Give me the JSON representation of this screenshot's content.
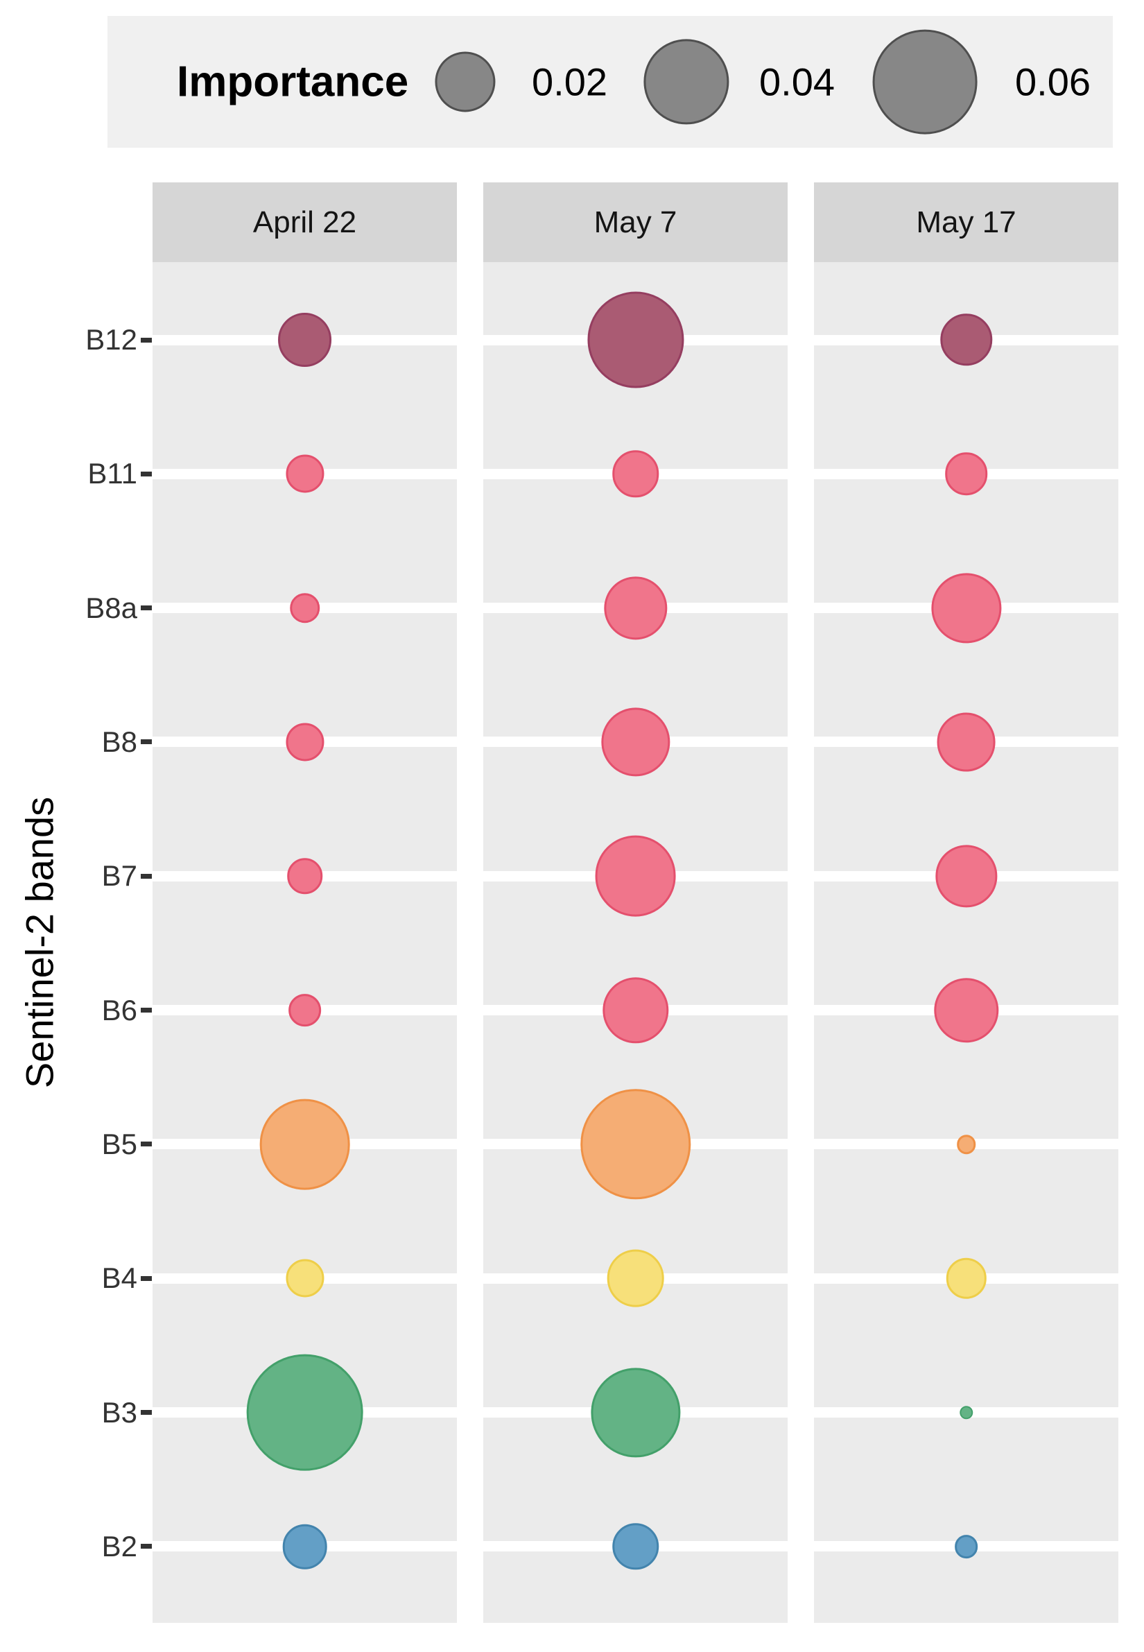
{
  "figure": {
    "background": "#ffffff",
    "panel_background": "#ebebeb",
    "strip_background": "#d6d6d6",
    "legend_background": "#f0f0f0",
    "gridline_color": "#ffffff"
  },
  "legend": {
    "title": "Importance",
    "circle_fill": "#878787",
    "circle_stroke": "#4f4f4f",
    "items": [
      {
        "label": "0.02",
        "value": 0.02
      },
      {
        "label": "0.04",
        "value": 0.04
      },
      {
        "label": "0.06",
        "value": 0.06
      }
    ]
  },
  "y_axis": {
    "title": "Sentinel-2 bands"
  },
  "chart_data": {
    "type": "bubble",
    "facets": [
      "April 22",
      "May 7",
      "May 17"
    ],
    "ylabel": "Sentinel-2 bands",
    "size_legend_title": "Importance",
    "size_legend_values": [
      0.02,
      0.04,
      0.06
    ],
    "legend_position": "top",
    "grid": "white horizontal major gridlines on gray panels",
    "bands": [
      {
        "label": "B12",
        "fill": "#aa5b73",
        "stroke": "#953e60",
        "importance": [
          0.016,
          0.051,
          0.015
        ]
      },
      {
        "label": "B11",
        "fill": "#f0758b",
        "stroke": "#e4506d",
        "importance": [
          0.008,
          0.012,
          0.01
        ]
      },
      {
        "label": "B8a",
        "fill": "#f0758b",
        "stroke": "#e4506d",
        "importance": [
          0.005,
          0.022,
          0.027
        ]
      },
      {
        "label": "B8",
        "fill": "#f0758b",
        "stroke": "#e4506d",
        "importance": [
          0.008,
          0.026,
          0.019
        ]
      },
      {
        "label": "B7",
        "fill": "#f0758b",
        "stroke": "#e4506d",
        "importance": [
          0.007,
          0.036,
          0.021
        ]
      },
      {
        "label": "B6",
        "fill": "#f0758b",
        "stroke": "#e4506d",
        "importance": [
          0.006,
          0.024,
          0.023
        ]
      },
      {
        "label": "B5",
        "fill": "#f5ad74",
        "stroke": "#ef9146",
        "importance": [
          0.045,
          0.067,
          0.002
        ]
      },
      {
        "label": "B4",
        "fill": "#f7e07a",
        "stroke": "#eece49",
        "importance": [
          0.008,
          0.018,
          0.009
        ]
      },
      {
        "label": "B3",
        "fill": "#63b385",
        "stroke": "#43a06a",
        "importance": [
          0.075,
          0.044,
          0.001
        ]
      },
      {
        "label": "B2",
        "fill": "#639fc6",
        "stroke": "#4384ad",
        "importance": [
          0.011,
          0.012,
          0.003
        ]
      }
    ]
  }
}
